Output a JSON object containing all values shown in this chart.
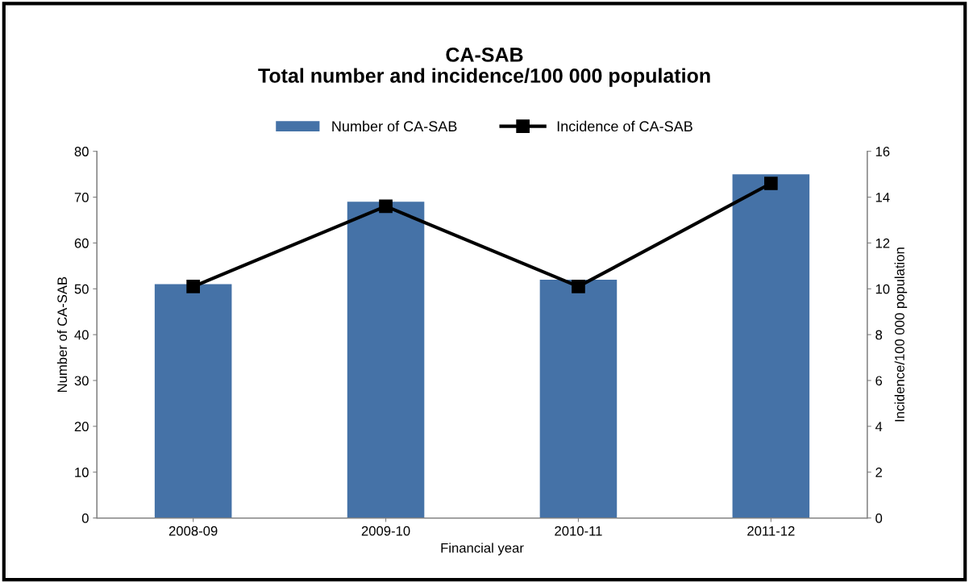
{
  "chart_data": {
    "type": "bar",
    "title": "CA-SAB\nTotal number and incidence/100 000 population",
    "xlabel": "Financial year",
    "ylabel": "Number of CA-SAB",
    "y2label": "Incidence/100 000 population",
    "categories": [
      "2008-09",
      "2009-10",
      "2010-11",
      "2011-12"
    ],
    "series": [
      {
        "name": "Number of CA-SAB",
        "color": "#4572a7",
        "values": [
          51,
          69,
          52,
          75
        ]
      },
      {
        "name": "Incidence of CA-SAB",
        "type": "line",
        "axis": "y2",
        "color": "#000000",
        "marker": "square",
        "values": [
          10.1,
          13.6,
          10.1,
          14.6
        ]
      }
    ],
    "ylim": [
      0,
      80
    ],
    "yticks": [
      0,
      10,
      20,
      30,
      40,
      50,
      60,
      70,
      80
    ],
    "y2lim": [
      0,
      16
    ],
    "y2ticks": [
      0,
      2,
      4,
      6,
      8,
      10,
      12,
      14,
      16
    ],
    "grid": false,
    "legend": "top"
  }
}
